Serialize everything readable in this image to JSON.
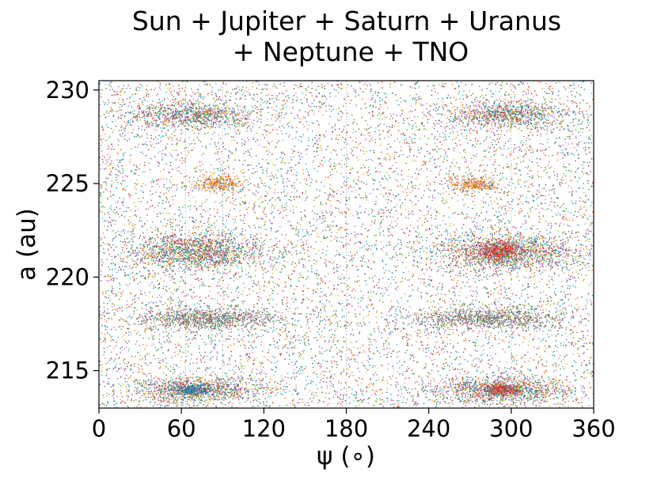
{
  "chart_data": {
    "type": "scatter",
    "title_lines": [
      "Sun + Jupiter + Saturn + Uranus",
      "+ Neptune + TNO"
    ],
    "xlabel": "ψ (∘)",
    "ylabel": "a (au)",
    "xlim": [
      0,
      360
    ],
    "ylim": [
      213.0,
      230.5
    ],
    "xticks": [
      0,
      60,
      120,
      180,
      240,
      300,
      360
    ],
    "xtick_labels": [
      "0",
      "60",
      "120",
      "180",
      "240",
      "300",
      "360"
    ],
    "yticks": [
      215,
      220,
      225,
      230
    ],
    "ytick_labels": [
      "215",
      "220",
      "225",
      "230"
    ],
    "grid": false,
    "legend": "none",
    "marker_colors": [
      "#1f77b4",
      "#ff7f0e",
      "#2ca02c",
      "#d62728",
      "#9467bd",
      "#8c564b",
      "#e377c2",
      "#7f7f7f",
      "#bcbd22",
      "#17becf"
    ],
    "background_point_count": 9000,
    "clusters": [
      {
        "x": [
          20,
          115
        ],
        "y": 228.7,
        "y_spread": 0.35,
        "count": 900
      },
      {
        "x": [
          255,
          340
        ],
        "y": 228.7,
        "y_spread": 0.35,
        "count": 900
      },
      {
        "x": [
          70,
          105
        ],
        "y": 225.0,
        "y_spread": 0.2,
        "count": 280,
        "dominant_color": "#ff7f0e"
      },
      {
        "x": [
          255,
          290
        ],
        "y": 225.0,
        "y_spread": 0.2,
        "count": 280,
        "dominant_color": "#ff7f0e"
      },
      {
        "x": [
          20,
          120
        ],
        "y": 221.4,
        "y_spread": 0.5,
        "count": 1500
      },
      {
        "x": [
          245,
          345
        ],
        "y": 221.4,
        "y_spread": 0.5,
        "count": 1500
      },
      {
        "x": [
          275,
          305
        ],
        "y": 221.4,
        "y_spread": 0.25,
        "count": 400,
        "dominant_color": "#d62728"
      },
      {
        "x": [
          25,
          130
        ],
        "y": 217.8,
        "y_spread": 0.3,
        "count": 1000,
        "dominant_color": "#7f7f7f"
      },
      {
        "x": [
          230,
          335
        ],
        "y": 217.8,
        "y_spread": 0.3,
        "count": 1000,
        "dominant_color": "#7f7f7f"
      },
      {
        "x": [
          20,
          120
        ],
        "y": 214.0,
        "y_spread": 0.35,
        "count": 1100
      },
      {
        "x": [
          245,
          340
        ],
        "y": 214.0,
        "y_spread": 0.35,
        "count": 1100
      },
      {
        "x": [
          55,
          80
        ],
        "y": 214.0,
        "y_spread": 0.15,
        "count": 300,
        "dominant_color": "#1f77b4"
      },
      {
        "x": [
          280,
          305
        ],
        "y": 214.0,
        "y_spread": 0.15,
        "count": 300,
        "dominant_color": "#d62728"
      }
    ],
    "vertical_streaks_x": [
      63,
      90,
      180,
      300
    ]
  }
}
